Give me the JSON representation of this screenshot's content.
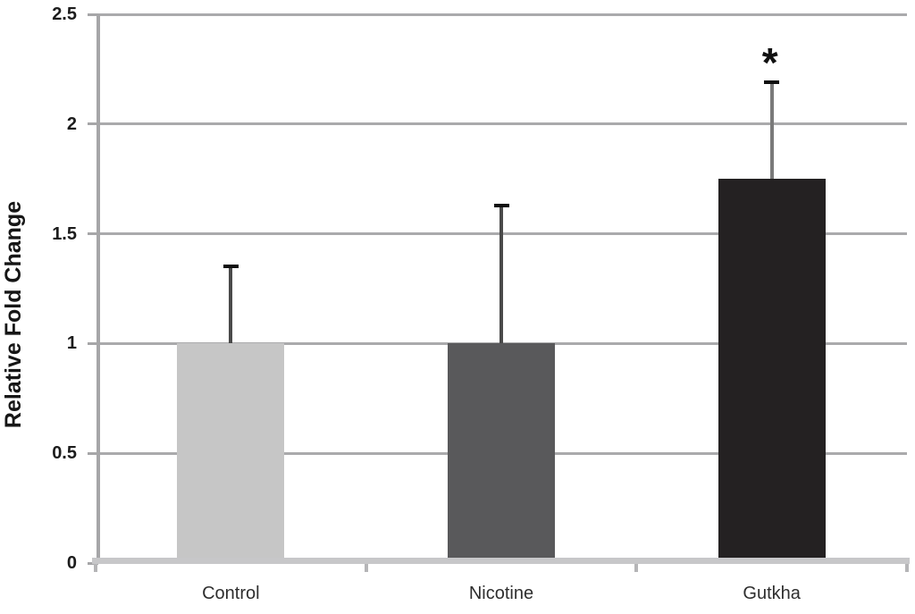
{
  "chart_data": {
    "type": "bar",
    "title": "",
    "xlabel": "",
    "ylabel": "Relative Fold Change",
    "categories": [
      "Control",
      "Nicotine",
      "Gutkha"
    ],
    "values": [
      1.0,
      1.0,
      1.75
    ],
    "error_tops": [
      1.35,
      1.63,
      2.19
    ],
    "errors_upper": [
      0.35,
      0.63,
      0.44
    ],
    "significance": [
      "",
      "",
      "*"
    ],
    "bar_colors": [
      "#c6c6c6",
      "#59595b",
      "#242122"
    ],
    "error_line_colors": [
      "#4a4a4a",
      "#4a4a4a",
      "#7a7a7a"
    ],
    "error_cap_color": "#0f0f0f",
    "ylim": [
      0,
      2.5
    ],
    "ytick_step": 0.5,
    "ytick_labels": [
      "0",
      "0.5",
      "1",
      "1.5",
      "2",
      "2.5"
    ],
    "grid": true,
    "legend": "none",
    "styling": {
      "gridline_color": "#aaaaac",
      "y_axis_color": "#a6a6a8",
      "x_axis_color": "#c7c7c9",
      "background": "#ffffff"
    }
  }
}
